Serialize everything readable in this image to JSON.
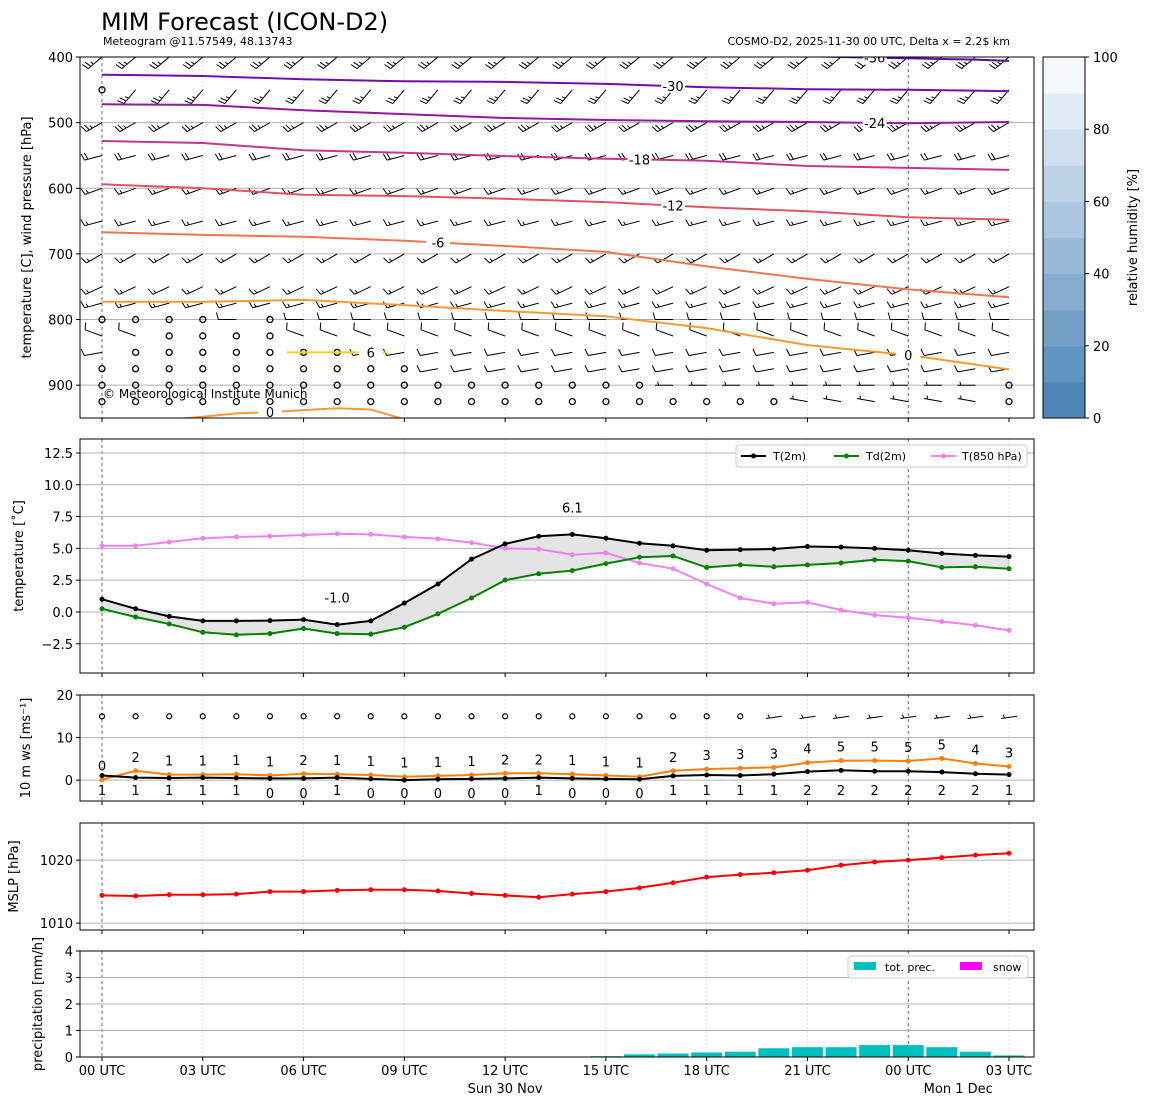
{
  "header": {
    "title": "MIM Forecast (ICON-D2)",
    "subtitle_left": "Meteogram @11.57549, 48.13743",
    "subtitle_right": "COSMO-D2, 2025-11-30 00 UTC, Delta x = 2.2$ km"
  },
  "x_axis": {
    "hours": [
      0,
      1,
      2,
      3,
      4,
      5,
      6,
      7,
      8,
      9,
      10,
      11,
      12,
      13,
      14,
      15,
      16,
      17,
      18,
      19,
      20,
      21,
      22,
      23,
      24,
      25,
      26,
      27
    ],
    "tick_hours": [
      0,
      3,
      6,
      9,
      12,
      15,
      18,
      21,
      24,
      27
    ],
    "tick_labels": [
      "00 UTC",
      "03 UTC",
      "06 UTC",
      "09 UTC",
      "12 UTC",
      "15 UTC",
      "18 UTC",
      "21 UTC",
      "00 UTC",
      "03 UTC"
    ],
    "date_labels": [
      {
        "hour": 12,
        "text": "Sun 30 Nov"
      },
      {
        "hour": 24,
        "text": "Mon 1 Dec"
      }
    ],
    "midnight_hours": [
      0,
      24
    ]
  },
  "colorbar": {
    "label": "relative humidity [%]",
    "range": [
      0,
      100
    ],
    "ticks": [
      "0",
      "20",
      "40",
      "60",
      "80",
      "100"
    ],
    "tick_values": [
      0,
      20,
      40,
      60,
      80,
      100
    ],
    "color_low": "#4f86b9",
    "color_high": "#f5f9fe"
  },
  "chart_data": [
    {
      "id": "upper_air",
      "type": "line",
      "ylabel": "temperature [C], wind pressure [hPa]",
      "ylim": [
        950,
        400
      ],
      "yticks": [
        400,
        500,
        600,
        700,
        800,
        900
      ],
      "ytick_labels": [
        "400",
        "500",
        "600",
        "700",
        "800",
        "900"
      ],
      "copyright": "© Meteorological Institute Munich",
      "isotherms": [
        {
          "label": "-36",
          "color": "#5c0a9e",
          "hours": [
            21,
            22,
            23,
            24,
            25,
            26,
            27
          ],
          "pressure": [
            399,
            400,
            401,
            402,
            403,
            404,
            406
          ],
          "label_hour": 23
        },
        {
          "label": "-30",
          "color": "#7010aa",
          "hours": [
            0,
            3,
            6,
            9,
            12,
            15,
            18,
            21,
            24,
            27
          ],
          "pressure": [
            427,
            429,
            434,
            437,
            438,
            441,
            446,
            449,
            450,
            452
          ],
          "label_hour": 17
        },
        {
          "label": "-24",
          "color": "#9517a0",
          "hours": [
            0,
            3,
            6,
            9,
            12,
            15,
            18,
            21,
            24,
            27
          ],
          "pressure": [
            472,
            473,
            481,
            487,
            493,
            496,
            498,
            499,
            501,
            499
          ],
          "label_hour": 23
        },
        {
          "label": "-18",
          "color": "#c23a86",
          "hours": [
            0,
            3,
            6,
            9,
            12,
            15,
            18,
            21,
            24,
            27
          ],
          "pressure": [
            528,
            531,
            542,
            546,
            551,
            555,
            558,
            566,
            569,
            572
          ],
          "label_hour": 16
        },
        {
          "label": "-12",
          "color": "#de5466",
          "hours": [
            0,
            3,
            6,
            9,
            12,
            15,
            18,
            21,
            24,
            27
          ],
          "pressure": [
            594,
            600,
            610,
            612,
            616,
            621,
            629,
            635,
            644,
            648
          ],
          "label_hour": 17
        },
        {
          "label": "-6",
          "color": "#ee7650",
          "hours": [
            0,
            3,
            6,
            9,
            12,
            15,
            18,
            21,
            24,
            27
          ],
          "pressure": [
            667,
            671,
            674,
            680,
            688,
            697,
            719,
            738,
            754,
            766
          ],
          "label_hour": 10
        },
        {
          "label": "0",
          "color": "#f89a36",
          "hours": [
            0,
            3,
            6,
            9,
            12,
            15,
            18,
            21,
            24,
            27
          ],
          "pressure": [
            773,
            773,
            770,
            778,
            787,
            795,
            813,
            839,
            854,
            876
          ],
          "label_hour": 24
        },
        {
          "label": "0",
          "color": "#f89a36",
          "hours": [
            1.5,
            3,
            4,
            5,
            6,
            7,
            8,
            9
          ],
          "pressure": [
            955,
            948,
            943,
            941,
            938,
            935,
            937,
            952
          ],
          "label_hour": 5
        },
        {
          "label": "6",
          "color": "#fcce25",
          "hours": [
            5.5,
            8.5
          ],
          "pressure": [
            850,
            850
          ],
          "label_hour": 8
        }
      ],
      "wind_barbs": [
        {
          "level": 400,
          "dir_deg": 40,
          "speed_kt": 25,
          "calm": "............................"
        },
        {
          "level": 450,
          "dir_deg": 50,
          "speed_kt": 25,
          "calm": "o..........................."
        },
        {
          "level": 500,
          "dir_deg": 30,
          "speed_kt": 25,
          "calm": "............................"
        },
        {
          "level": 550,
          "dir_deg": 15,
          "speed_kt": 20,
          "calm": "............................"
        },
        {
          "level": 600,
          "dir_deg": 20,
          "speed_kt": 15,
          "calm": "............................"
        },
        {
          "level": 650,
          "dir_deg": 15,
          "speed_kt": 15,
          "calm": "............................"
        },
        {
          "level": 700,
          "dir_deg": 30,
          "speed_kt": 15,
          "calm": "............................"
        },
        {
          "level": 750,
          "dir_deg": 25,
          "speed_kt": 15,
          "calm": "............................"
        },
        {
          "level": 775,
          "dir_deg": 15,
          "speed_kt": 15,
          "calm": "............................"
        },
        {
          "level": 800,
          "dir_deg": 0,
          "speed_kt": 10,
          "calm": "oooo.o......................"
        },
        {
          "level": 825,
          "dir_deg": -20,
          "speed_kt": 10,
          "calm": "..oooo......................"
        },
        {
          "level": 850,
          "dir_deg": 10,
          "speed_kt": 10,
          "calm": ".ooooooo...................."
        },
        {
          "level": 875,
          "dir_deg": 10,
          "speed_kt": 10,
          "calm": "oooooooooo.................."
        },
        {
          "level": 900,
          "dir_deg": 0,
          "speed_kt": 5,
          "calm": "ooooooooooooooooo..........o"
        },
        {
          "level": 925,
          "dir_deg": -10,
          "speed_kt": 5,
          "calm": "ooooooooooooooooooooo......o"
        }
      ]
    },
    {
      "id": "temperature",
      "type": "line",
      "ylabel": "temperature [˚C]",
      "ylim": [
        -4.8,
        13.6
      ],
      "yticks": [
        -2.5,
        0,
        2.5,
        5,
        7.5,
        10,
        12.5
      ],
      "ytick_labels": [
        "−2.5",
        "0.0",
        "2.5",
        "5.0",
        "7.5",
        "10.0",
        "12.5"
      ],
      "legend_position": "top-right",
      "series": [
        {
          "name": "T(2m)",
          "color": "#000000",
          "values": [
            1.0,
            0.25,
            -0.35,
            -0.7,
            -0.7,
            -0.68,
            -0.6,
            -1.0,
            -0.7,
            0.7,
            2.2,
            4.15,
            5.35,
            5.95,
            6.1,
            5.8,
            5.4,
            5.2,
            4.85,
            4.9,
            4.95,
            5.15,
            5.1,
            5.0,
            4.85,
            4.6,
            4.45,
            4.35
          ]
        },
        {
          "name": "Td(2m)",
          "color": "#008000",
          "values": [
            0.25,
            -0.4,
            -0.95,
            -1.6,
            -1.8,
            -1.7,
            -1.3,
            -1.7,
            -1.75,
            -1.2,
            -0.15,
            1.1,
            2.5,
            3.0,
            3.25,
            3.8,
            4.3,
            4.4,
            3.5,
            3.7,
            3.55,
            3.7,
            3.85,
            4.1,
            4.0,
            3.5,
            3.55,
            3.4
          ]
        },
        {
          "name": "T(850 hPa)",
          "color": "#ee82ee",
          "values": [
            5.2,
            5.2,
            5.5,
            5.8,
            5.9,
            5.95,
            6.05,
            6.15,
            6.1,
            5.9,
            5.75,
            5.45,
            5.0,
            4.95,
            4.5,
            4.65,
            3.85,
            3.4,
            2.2,
            1.1,
            0.65,
            0.75,
            0.15,
            -0.25,
            -0.45,
            -0.75,
            -1.05,
            -1.45
          ]
        }
      ],
      "annotations": [
        {
          "text": "6.1",
          "hour": 14,
          "value": 6.1,
          "color": "#ff0000"
        },
        {
          "text": "-1.0",
          "hour": 7,
          "value": -1.0,
          "color": "#0000ff"
        }
      ]
    },
    {
      "id": "wind10m",
      "type": "line",
      "ylabel": "10 m ws [ms⁻¹]",
      "ylim": [
        -4.9,
        20
      ],
      "yticks": [
        0,
        10,
        20
      ],
      "ytick_labels": [
        "0",
        "10",
        "20"
      ],
      "series": [
        {
          "name": "gust",
          "color": "#ff7f0e",
          "values": [
            0.1,
            2.2,
            1.3,
            1.3,
            1.4,
            1.1,
            1.5,
            1.4,
            1.2,
            0.8,
            1.0,
            1.2,
            1.6,
            1.6,
            1.4,
            1.1,
            0.8,
            2.2,
            2.6,
            2.8,
            3.0,
            4.1,
            4.6,
            4.6,
            4.5,
            5.1,
            3.9,
            3.2
          ],
          "labels": [
            "0",
            "2",
            "1",
            "1",
            "1",
            "1",
            "2",
            "1",
            "1",
            "1",
            "1",
            "1",
            "2",
            "2",
            "1",
            "1",
            "1",
            "2",
            "3",
            "3",
            "3",
            "4",
            "5",
            "5",
            "5",
            "5",
            "4",
            "3"
          ]
        },
        {
          "name": "wind speed",
          "color": "#000000",
          "values": [
            1.1,
            0.6,
            0.5,
            0.6,
            0.5,
            0.4,
            0.4,
            0.6,
            0.3,
            0.0,
            0.2,
            0.3,
            0.4,
            0.6,
            0.4,
            0.3,
            0.2,
            1.0,
            1.2,
            1.1,
            1.4,
            2.0,
            2.3,
            2.1,
            2.1,
            1.9,
            1.5,
            1.3
          ],
          "labels": [
            "1",
            "1",
            "1",
            "1",
            "1",
            "0",
            "0",
            "1",
            "0",
            "0",
            "0",
            "0",
            "0",
            "1",
            "0",
            "0",
            "0",
            "1",
            "1",
            "1",
            "1",
            "2",
            "2",
            "2",
            "2",
            "2",
            "2",
            "1"
          ]
        }
      ],
      "barbs": {
        "value": 15,
        "dir_deg": 8,
        "speed_kt": 5,
        "calm": "oooooooooooooooooooo........"
      }
    },
    {
      "id": "mslp",
      "type": "line",
      "ylabel": "MSLP [hPa]",
      "ylim": [
        1008.9,
        1025.9
      ],
      "yticks": [
        1010,
        1020
      ],
      "ytick_labels": [
        "1010",
        "1020"
      ],
      "series": [
        {
          "name": "MSLP",
          "color": "#ff0000",
          "values": [
            1014.4,
            1014.3,
            1014.5,
            1014.5,
            1014.6,
            1015.0,
            1015.0,
            1015.2,
            1015.3,
            1015.3,
            1015.1,
            1014.7,
            1014.4,
            1014.1,
            1014.6,
            1015.0,
            1015.6,
            1016.4,
            1017.3,
            1017.7,
            1018.0,
            1018.4,
            1019.2,
            1019.7,
            1020.0,
            1020.4,
            1020.8,
            1021.1
          ]
        }
      ]
    },
    {
      "id": "precipitation",
      "type": "bar",
      "ylabel": "precipitation [mm/h]",
      "ylim": [
        0,
        4
      ],
      "yticks": [
        0,
        1,
        2,
        3,
        4
      ],
      "ytick_labels": [
        "0",
        "1",
        "2",
        "3",
        "4"
      ],
      "legend_position": "top-right",
      "series": [
        {
          "name": "tot. prec.",
          "color": "#00bfbf",
          "values": [
            0,
            0,
            0,
            0,
            0,
            0,
            0,
            0,
            0,
            0,
            0,
            0,
            0,
            0,
            0,
            0.03,
            0.1,
            0.13,
            0.17,
            0.2,
            0.33,
            0.37,
            0.37,
            0.45,
            0.45,
            0.37,
            0.2,
            0.06
          ]
        },
        {
          "name": "snow",
          "color": "#ff00ff",
          "values": [
            0,
            0,
            0,
            0,
            0,
            0,
            0,
            0,
            0,
            0,
            0,
            0,
            0,
            0,
            0,
            0,
            0,
            0,
            0,
            0,
            0,
            0,
            0,
            0,
            0,
            0,
            0,
            0
          ]
        }
      ]
    }
  ]
}
